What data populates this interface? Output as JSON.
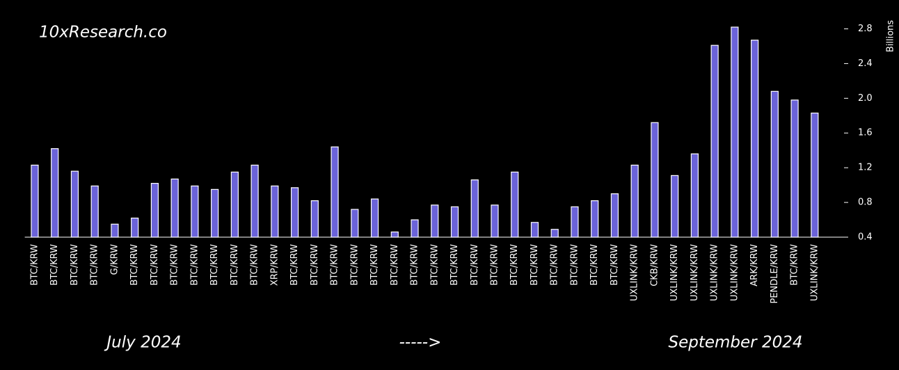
{
  "chart_data": {
    "type": "bar",
    "watermark": "10xResearch.co",
    "y_axis_label": "Billions",
    "annotations": [
      "July 2024",
      "----->",
      "September 2024"
    ],
    "categories": [
      "BTC/KRW",
      "BTC/KRW",
      "BTC/KRW",
      "BTC/KRW",
      "G/KRW",
      "BTC/KRW",
      "BTC/KRW",
      "BTC/KRW",
      "BTC/KRW",
      "BTC/KRW",
      "BTC/KRW",
      "BTC/KRW",
      "XRP/KRW",
      "BTC/KRW",
      "BTC/KRW",
      "BTC/KRW",
      "BTC/KRW",
      "BTC/KRW",
      "BTC/KRW",
      "BTC/KRW",
      "BTC/KRW",
      "BTC/KRW",
      "BTC/KRW",
      "BTC/KRW",
      "BTC/KRW",
      "BTC/KRW",
      "BTC/KRW",
      "BTC/KRW",
      "BTC/KRW",
      "BTC/KRW",
      "UXLINK/KRW",
      "CKB/KRW",
      "UXLINK/KRW",
      "UXLINK/KRW",
      "UXLINK/KRW",
      "UXLINK/KRW",
      "ARK/KRW",
      "PENDLE/KRW",
      "BTC/KRW",
      "UXLINK/KRW"
    ],
    "values": [
      1.23,
      1.42,
      1.16,
      0.99,
      0.55,
      0.62,
      1.02,
      1.07,
      0.99,
      0.95,
      1.15,
      1.23,
      0.99,
      0.97,
      0.82,
      1.44,
      0.72,
      0.84,
      0.46,
      0.6,
      0.77,
      0.75,
      1.06,
      0.77,
      1.15,
      0.57,
      0.49,
      0.75,
      0.82,
      0.9,
      1.23,
      1.72,
      1.11,
      1.36,
      2.61,
      2.82,
      2.67,
      2.08,
      1.98,
      1.83
    ],
    "color": "#6b63d8",
    "ylim": [
      0.4,
      2.9
    ],
    "yticks": [
      0.4,
      0.8,
      1.2,
      1.6,
      {
        "value": 2,
        "label": "2.0"
      },
      2.4,
      2.8
    ],
    "y_axis_side": "right"
  }
}
